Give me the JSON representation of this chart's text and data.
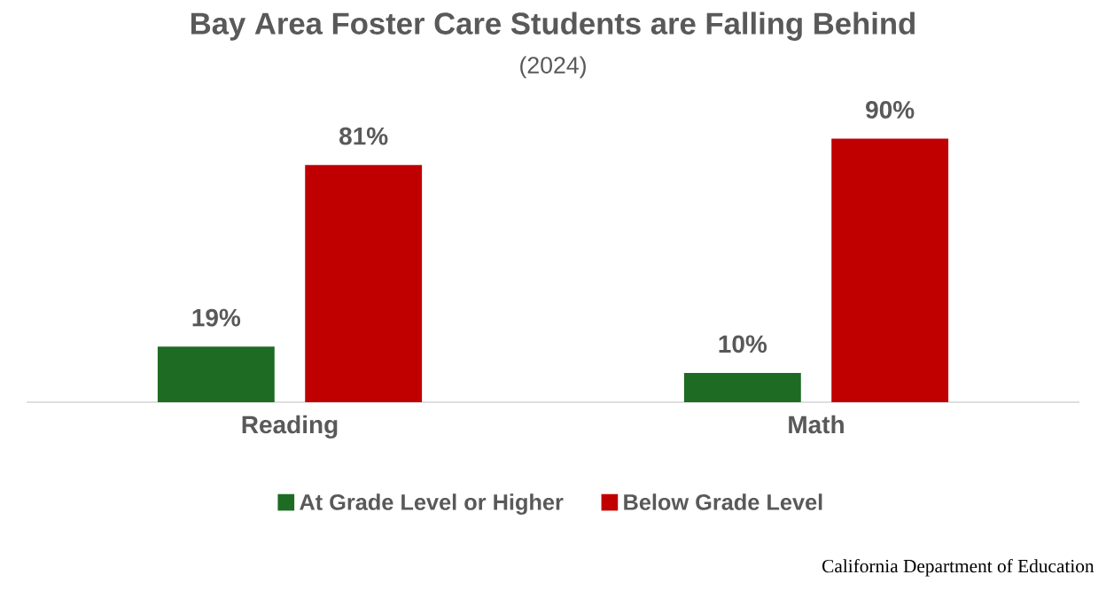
{
  "chart_data": {
    "type": "bar",
    "title": "Bay Area Foster Care Students are Falling Behind",
    "subtitle": "(2024)",
    "categories": [
      "Reading",
      "Math"
    ],
    "series": [
      {
        "name": "At Grade Level or Higher",
        "color": "#1e6b24",
        "values": [
          19,
          10
        ],
        "value_labels": [
          "19%",
          "10%"
        ]
      },
      {
        "name": "Below Grade Level",
        "color": "#c00000",
        "values": [
          81,
          90
        ],
        "value_labels": [
          "81%",
          "90%"
        ]
      }
    ],
    "legend": "bottom",
    "annotations": [
      "California Department of Education"
    ]
  }
}
